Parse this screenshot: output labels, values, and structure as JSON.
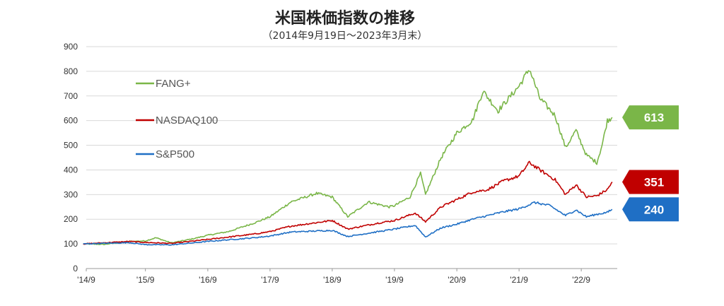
{
  "title": "米国株価指数の推移",
  "subtitle": "（2014年9月19日～2023年3月末）",
  "colors": {
    "fang": "#7ab648",
    "nasdaq": "#c00000",
    "sp500": "#1f6fc5",
    "grid": "#d9d9d9",
    "axis": "#999999"
  },
  "chart_data": {
    "type": "line",
    "title": "米国株価指数の推移",
    "subtitle": "（2014年9月19日～2023年3月末）",
    "xlabel": "",
    "ylabel": "",
    "ylim": [
      0,
      900
    ],
    "y_ticks": [
      0,
      100,
      200,
      300,
      400,
      500,
      600,
      700,
      800,
      900
    ],
    "x_ticks": [
      "'14/9",
      "'15/9",
      "'16/9",
      "'17/9",
      "'18/9",
      "'19/9",
      "'20/9",
      "'21/9",
      "'22/9"
    ],
    "xlim": [
      "2014-09-19",
      "2023-03-31"
    ],
    "grid": "horizontal",
    "legend": "upper-left",
    "series": [
      {
        "name": "FANG+",
        "color_key": "fang",
        "end_label": "613",
        "points": [
          [
            "2014-09",
            100
          ],
          [
            "2015-01",
            98
          ],
          [
            "2015-06",
            110
          ],
          [
            "2015-09",
            112
          ],
          [
            "2015-11",
            125
          ],
          [
            "2016-02",
            104
          ],
          [
            "2016-06",
            120
          ],
          [
            "2016-09",
            135
          ],
          [
            "2017-01",
            150
          ],
          [
            "2017-06",
            185
          ],
          [
            "2017-09",
            210
          ],
          [
            "2018-01",
            270
          ],
          [
            "2018-06",
            305
          ],
          [
            "2018-09",
            290
          ],
          [
            "2018-12",
            210
          ],
          [
            "2019-04",
            270
          ],
          [
            "2019-08",
            250
          ],
          [
            "2019-09",
            255
          ],
          [
            "2019-12",
            290
          ],
          [
            "2020-02",
            385
          ],
          [
            "2020-03",
            300
          ],
          [
            "2020-06",
            450
          ],
          [
            "2020-09",
            550
          ],
          [
            "2020-12",
            600
          ],
          [
            "2021-02",
            720
          ],
          [
            "2021-05",
            640
          ],
          [
            "2021-09",
            740
          ],
          [
            "2021-11",
            810
          ],
          [
            "2022-01",
            690
          ],
          [
            "2022-04",
            620
          ],
          [
            "2022-06",
            490
          ],
          [
            "2022-08",
            560
          ],
          [
            "2022-10",
            460
          ],
          [
            "2022-12",
            430
          ],
          [
            "2023-01",
            500
          ],
          [
            "2023-02",
            600
          ],
          [
            "2023-03",
            613
          ]
        ]
      },
      {
        "name": "NASDAQ100",
        "color_key": "nasdaq",
        "end_label": "351",
        "points": [
          [
            "2014-09",
            100
          ],
          [
            "2015-06",
            110
          ],
          [
            "2015-09",
            106
          ],
          [
            "2016-02",
            102
          ],
          [
            "2016-09",
            118
          ],
          [
            "2017-06",
            140
          ],
          [
            "2017-09",
            150
          ],
          [
            "2018-01",
            172
          ],
          [
            "2018-09",
            195
          ],
          [
            "2018-12",
            160
          ],
          [
            "2019-06",
            185
          ],
          [
            "2019-09",
            195
          ],
          [
            "2020-01",
            225
          ],
          [
            "2020-03",
            190
          ],
          [
            "2020-06",
            250
          ],
          [
            "2020-09",
            280
          ],
          [
            "2020-12",
            310
          ],
          [
            "2021-03",
            320
          ],
          [
            "2021-06",
            355
          ],
          [
            "2021-09",
            375
          ],
          [
            "2021-11",
            430
          ],
          [
            "2022-01",
            400
          ],
          [
            "2022-04",
            360
          ],
          [
            "2022-06",
            300
          ],
          [
            "2022-08",
            340
          ],
          [
            "2022-10",
            290
          ],
          [
            "2022-12",
            295
          ],
          [
            "2023-02",
            320
          ],
          [
            "2023-03",
            351
          ]
        ]
      },
      {
        "name": "S&P500",
        "color_key": "sp500",
        "end_label": "240",
        "points": [
          [
            "2014-09",
            100
          ],
          [
            "2015-06",
            105
          ],
          [
            "2015-09",
            97
          ],
          [
            "2016-02",
            96
          ],
          [
            "2016-09",
            110
          ],
          [
            "2017-06",
            125
          ],
          [
            "2017-09",
            132
          ],
          [
            "2018-01",
            148
          ],
          [
            "2018-09",
            155
          ],
          [
            "2018-12",
            130
          ],
          [
            "2019-06",
            150
          ],
          [
            "2019-09",
            160
          ],
          [
            "2020-01",
            175
          ],
          [
            "2020-03",
            128
          ],
          [
            "2020-06",
            165
          ],
          [
            "2020-09",
            180
          ],
          [
            "2020-12",
            200
          ],
          [
            "2021-06",
            230
          ],
          [
            "2021-09",
            242
          ],
          [
            "2021-12",
            268
          ],
          [
            "2022-03",
            255
          ],
          [
            "2022-06",
            215
          ],
          [
            "2022-08",
            238
          ],
          [
            "2022-10",
            210
          ],
          [
            "2022-12",
            220
          ],
          [
            "2023-02",
            228
          ],
          [
            "2023-03",
            240
          ]
        ]
      }
    ]
  }
}
